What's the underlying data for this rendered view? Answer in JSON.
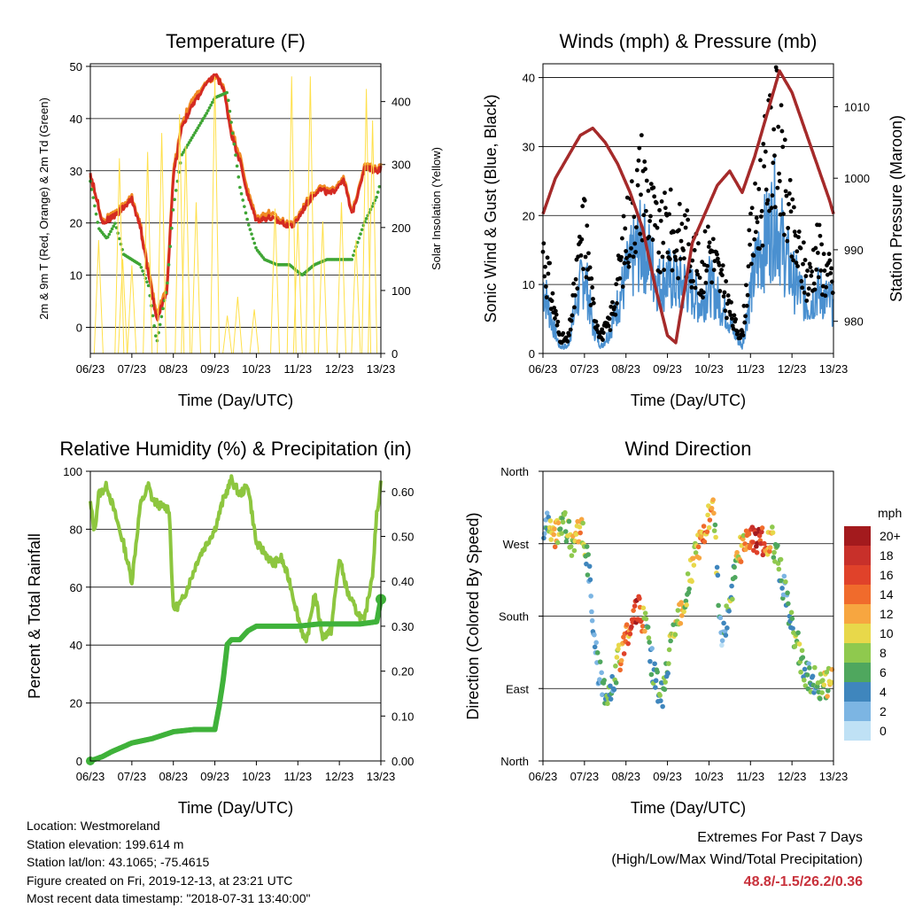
{
  "chart_data": [
    {
      "id": "temperature",
      "type": "line",
      "title": "Temperature (F)",
      "xlabel": "Time (Day/UTC)",
      "ylabel": "2m & 9m T (Red, Orange) & 2m Td (Green)",
      "y2label": "Solar Insolation (Yellow)",
      "x_ticks": [
        "06/23",
        "07/23",
        "08/23",
        "09/23",
        "10/23",
        "11/23",
        "12/23",
        "13/23"
      ],
      "ylim": [
        -5,
        50.5
      ],
      "y_ticks": [
        0,
        10,
        20,
        30,
        40,
        50
      ],
      "y2lim": [
        0,
        460
      ],
      "y2_ticks": [
        0,
        100,
        200,
        300,
        400
      ],
      "grid": "horizontal",
      "series": [
        {
          "key": "t9",
          "color": "#f08a24",
          "axis": "left",
          "width": 3,
          "style": "line",
          "x": [
            0,
            0.3,
            0.6,
            1.0,
            1.2,
            1.4,
            1.6,
            1.85,
            2.0,
            2.2,
            2.3,
            2.5,
            2.7,
            3.0,
            3.2,
            3.4,
            3.6,
            3.8,
            4.0,
            4.3,
            4.6,
            4.9,
            5.2,
            5.5,
            5.8,
            6.1,
            6.3,
            6.6,
            6.9,
            7.0
          ],
          "y": [
            29,
            20.5,
            22,
            25,
            20,
            11,
            2.5,
            8,
            30,
            39,
            41,
            44,
            46,
            48,
            46.5,
            38,
            33,
            26,
            21,
            22,
            20.5,
            20,
            24,
            27,
            26,
            29,
            22,
            31,
            30.5,
            31
          ]
        },
        {
          "key": "t2",
          "color": "#d42a22",
          "axis": "left",
          "width": 3,
          "style": "line",
          "x": [
            0,
            0.3,
            0.6,
            1.0,
            1.2,
            1.4,
            1.6,
            1.85,
            2.0,
            2.2,
            2.3,
            2.5,
            2.7,
            3.0,
            3.2,
            3.4,
            3.6,
            3.8,
            4.0,
            4.3,
            4.6,
            4.9,
            5.2,
            5.5,
            5.8,
            6.1,
            6.3,
            6.6,
            6.9,
            7.0
          ],
          "y": [
            29.5,
            20,
            21.5,
            24.5,
            19.5,
            10,
            1.5,
            7,
            29,
            38.5,
            40,
            43,
            45.5,
            48.5,
            46,
            37,
            32,
            25,
            20.5,
            21,
            20,
            19.5,
            23.5,
            26.5,
            25.5,
            28.5,
            21.5,
            30.5,
            30,
            30.5
          ]
        },
        {
          "key": "td",
          "color": "#3fa535",
          "axis": "left",
          "width": 2,
          "style": "dots",
          "x": [
            0,
            0.2,
            0.4,
            0.6,
            0.8,
            1.0,
            1.2,
            1.4,
            1.6,
            1.85,
            2.0,
            2.2,
            2.5,
            2.8,
            3.0,
            3.3,
            3.6,
            3.8,
            4.0,
            4.2,
            4.5,
            4.8,
            5.1,
            5.4,
            5.7,
            6.0,
            6.3,
            6.6,
            6.9,
            7.0
          ],
          "y": [
            28,
            19,
            17,
            20,
            14,
            13,
            12,
            8,
            -3,
            8,
            23,
            33,
            37,
            41,
            44,
            45,
            27,
            20,
            15,
            13,
            12,
            12,
            10,
            12,
            13,
            13,
            13,
            20,
            25,
            28
          ]
        },
        {
          "key": "solar",
          "color": "#ffe04a",
          "axis": "right",
          "width": 1,
          "style": "spikes",
          "x": [
            0.2,
            0.7,
            0.78,
            1.0,
            1.38,
            1.72,
            2.15,
            2.3,
            2.55,
            3.0,
            3.3,
            3.55,
            3.95,
            4.45,
            4.85,
            5.0,
            5.3,
            5.6,
            6.05,
            6.4,
            6.65,
            6.8
          ],
          "y": [
            180,
            310,
            150,
            140,
            320,
            350,
            380,
            330,
            240,
            440,
            60,
            90,
            70,
            230,
            440,
            210,
            440,
            210,
            240,
            180,
            420,
            370
          ]
        }
      ]
    },
    {
      "id": "winds",
      "type": "line",
      "title": "Winds (mph) & Pressure (mb)",
      "xlabel": "Time (Day/UTC)",
      "ylabel": "Sonic Wind & Gust (Blue, Black)",
      "y2label": "Station Pressure (Maroon)",
      "x_ticks": [
        "06/23",
        "07/23",
        "08/23",
        "09/23",
        "10/23",
        "11/23",
        "12/23",
        "13/23"
      ],
      "ylim": [
        0,
        42
      ],
      "y_ticks": [
        0,
        10,
        20,
        30,
        40
      ],
      "y2lim": [
        975.5,
        1016
      ],
      "y2_ticks": [
        980,
        990,
        1000,
        1010
      ],
      "grid": "horizontal",
      "series": [
        {
          "key": "gust",
          "color": "#000000",
          "axis": "left",
          "style": "scatter",
          "x": [
            0,
            0.2,
            0.4,
            0.6,
            0.8,
            1.0,
            1.2,
            1.4,
            1.6,
            1.8,
            2.0,
            2.2,
            2.4,
            2.6,
            2.8,
            3.0,
            3.2,
            3.4,
            3.6,
            3.8,
            4.0,
            4.2,
            4.4,
            4.6,
            4.8,
            5.0,
            5.2,
            5.4,
            5.6,
            5.8,
            6.0,
            6.2,
            6.4,
            6.6,
            6.8,
            7.0
          ],
          "y": [
            18,
            10,
            3,
            2,
            12,
            22,
            8,
            3,
            5,
            12,
            20,
            25,
            30,
            24,
            18,
            22,
            19,
            20,
            17,
            13,
            19,
            14,
            10,
            5,
            3,
            18,
            25,
            32,
            38,
            29,
            20,
            16,
            12,
            18,
            14,
            12
          ]
        },
        {
          "key": "wind",
          "color": "#4a90d0",
          "axis": "left",
          "style": "line",
          "x": [
            0,
            0.2,
            0.4,
            0.6,
            0.8,
            1.0,
            1.2,
            1.4,
            1.6,
            1.8,
            2.0,
            2.2,
            2.4,
            2.6,
            2.8,
            3.0,
            3.2,
            3.4,
            3.6,
            3.8,
            4.0,
            4.2,
            4.4,
            4.6,
            4.8,
            5.0,
            5.2,
            5.4,
            5.6,
            5.8,
            6.0,
            6.2,
            6.4,
            6.6,
            6.8,
            7.0
          ],
          "y": [
            10,
            5,
            1,
            1,
            7,
            12,
            4,
            1,
            3,
            7,
            11,
            14,
            16,
            13,
            10,
            11,
            10,
            10,
            9,
            7,
            10,
            8,
            6,
            3,
            1,
            9,
            14,
            17,
            20,
            15,
            11,
            9,
            7,
            9,
            8,
            7
          ]
        },
        {
          "key": "pressure",
          "color": "#a52a2a",
          "axis": "right",
          "width": 3.5,
          "style": "line",
          "x": [
            0,
            0.3,
            0.6,
            0.9,
            1.2,
            1.5,
            1.8,
            2.1,
            2.4,
            2.7,
            3.0,
            3.2,
            3.4,
            3.6,
            3.9,
            4.2,
            4.5,
            4.8,
            5.1,
            5.4,
            5.7,
            6.0,
            6.3,
            6.6,
            6.9,
            7.0
          ],
          "y": [
            995,
            1000,
            1003,
            1006,
            1007,
            1005,
            1002,
            998,
            993,
            985,
            978,
            977,
            984,
            991,
            995,
            999,
            1001,
            998,
            1003,
            1009,
            1015,
            1012,
            1007,
            1002,
            997,
            995
          ]
        }
      ]
    },
    {
      "id": "humidity",
      "type": "line",
      "title": "Relative Humidity (%) & Precipitation (in)",
      "xlabel": "Time (Day/UTC)",
      "ylabel": "Percent & Total Rainfall",
      "x_ticks": [
        "06/23",
        "07/23",
        "08/23",
        "09/23",
        "10/23",
        "11/23",
        "12/23",
        "13/23"
      ],
      "ylim": [
        0,
        100
      ],
      "y_ticks": [
        0,
        20,
        40,
        60,
        80,
        100
      ],
      "y2lim": [
        0,
        0.645
      ],
      "y2_ticks": [
        "0.00",
        "0.10",
        "0.20",
        "0.30",
        "0.40",
        "0.50",
        "0.60"
      ],
      "grid": "horizontal",
      "series": [
        {
          "key": "rh",
          "color": "#8dc63f",
          "axis": "left",
          "width": 4,
          "style": "line",
          "x": [
            0,
            0.1,
            0.2,
            0.4,
            0.6,
            0.8,
            1.0,
            1.2,
            1.4,
            1.5,
            1.7,
            1.9,
            2.0,
            2.2,
            2.4,
            2.6,
            2.8,
            3.0,
            3.2,
            3.4,
            3.6,
            3.8,
            4.0,
            4.2,
            4.4,
            4.6,
            4.8,
            5.0,
            5.2,
            5.4,
            5.6,
            5.8,
            6.0,
            6.2,
            6.4,
            6.6,
            6.8,
            6.9,
            7.0
          ],
          "y": [
            89,
            79,
            92,
            95,
            85,
            75,
            62,
            88,
            95,
            90,
            88,
            87,
            52,
            55,
            62,
            70,
            75,
            80,
            90,
            97,
            92,
            95,
            75,
            72,
            68,
            70,
            62,
            50,
            40,
            58,
            43,
            45,
            70,
            58,
            52,
            48,
            65,
            85,
            96
          ]
        },
        {
          "key": "precip",
          "color": "#3fb23a",
          "axis": "right",
          "width": 6,
          "style": "line",
          "x": [
            0,
            0.3,
            0.5,
            1.0,
            1.5,
            2.0,
            2.5,
            3.0,
            3.1,
            3.2,
            3.3,
            3.4,
            3.6,
            3.8,
            4.0,
            4.5,
            5.0,
            5.5,
            6.0,
            6.5,
            6.9,
            7.0
          ],
          "y": [
            0.0,
            0.01,
            0.02,
            0.04,
            0.05,
            0.065,
            0.07,
            0.07,
            0.12,
            0.18,
            0.26,
            0.27,
            0.27,
            0.29,
            0.3,
            0.3,
            0.3,
            0.305,
            0.305,
            0.305,
            0.31,
            0.36
          ]
        }
      ]
    },
    {
      "id": "direction",
      "type": "scatter",
      "title": "Wind Direction",
      "xlabel": "Time (Day/UTC)",
      "ylabel": "Direction (Colored By Speed)",
      "x_ticks": [
        "06/23",
        "07/23",
        "08/23",
        "09/23",
        "10/23",
        "11/23",
        "12/23",
        "13/23"
      ],
      "y_ticks": [
        "North",
        "West",
        "South",
        "East",
        "North"
      ],
      "ylim": [
        0,
        360
      ],
      "grid": "horizontal",
      "colorbar": {
        "title": "mph",
        "labels": [
          "20+",
          "18",
          "16",
          "14",
          "12",
          "10",
          "8",
          "6",
          "4",
          "2",
          "0"
        ],
        "colors": [
          "#a31a1d",
          "#c8302a",
          "#e0422a",
          "#f06b2c",
          "#f7a640",
          "#e8d84a",
          "#8fc94e",
          "#4fa75e",
          "#3f86bd",
          "#7cb5e3",
          "#bfe1f5"
        ]
      },
      "points": {
        "x": [
          0.1,
          0.3,
          0.5,
          0.7,
          0.9,
          1.1,
          1.3,
          1.5,
          1.7,
          1.9,
          2.1,
          2.3,
          2.5,
          2.7,
          2.9,
          3.1,
          3.3,
          3.5,
          3.7,
          3.9,
          4.1,
          4.3,
          4.5,
          4.7,
          4.9,
          5.1,
          5.3,
          5.5,
          5.7,
          5.9,
          6.1,
          6.3,
          6.5,
          6.7,
          6.9
        ],
        "y": [
          290,
          280,
          300,
          270,
          295,
          240,
          120,
          85,
          100,
          140,
          170,
          190,
          160,
          100,
          80,
          160,
          180,
          220,
          260,
          290,
          320,
          150,
          190,
          260,
          270,
          280,
          270,
          280,
          240,
          190,
          150,
          110,
          100,
          90,
          100
        ],
        "speed": [
          4,
          12,
          6,
          8,
          12,
          4,
          2,
          6,
          4,
          12,
          14,
          18,
          6,
          4,
          6,
          8,
          10,
          6,
          12,
          14,
          10,
          3,
          6,
          10,
          12,
          18,
          16,
          10,
          6,
          4,
          8,
          6,
          4,
          8,
          10
        ]
      }
    }
  ],
  "info": {
    "location": "Location: Westmoreland",
    "elevation": "Station elevation: 199.614 m",
    "latlon": "Station lat/lon: 43.1065; -75.4615",
    "created": "Figure created on Fri, 2019-12-13, at 23:21 UTC",
    "timestamp": "Most recent data timestamp: \"2018-07-31 13:40:00\""
  },
  "extremes": {
    "title": "Extremes For Past 7 Days",
    "subtitle": "(High/Low/Max Wind/Total Precipitation)",
    "value": "48.8/-1.5/26.2/0.36"
  }
}
